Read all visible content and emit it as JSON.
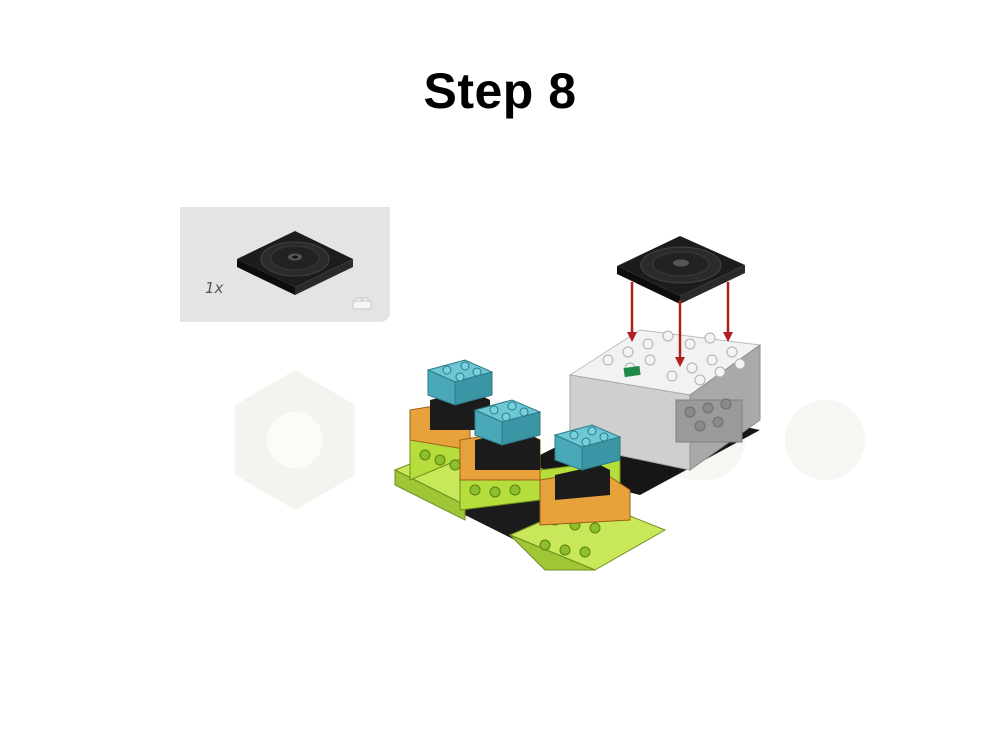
{
  "page": {
    "title": "Step 8"
  },
  "parts_list": {
    "items": [
      {
        "quantity": "1x",
        "part": "black-turntable-plate-icon"
      }
    ]
  },
  "colors": {
    "black_plate": "#1c1c1c",
    "hub_white": "#f2f2f2",
    "hub_gray": "#a9a9a9",
    "azure": "#57b8c8",
    "orange": "#e7a23b",
    "lime": "#b5de3c",
    "arrow_red": "#b01e1e",
    "panel_bg": "#e4e4e4"
  }
}
